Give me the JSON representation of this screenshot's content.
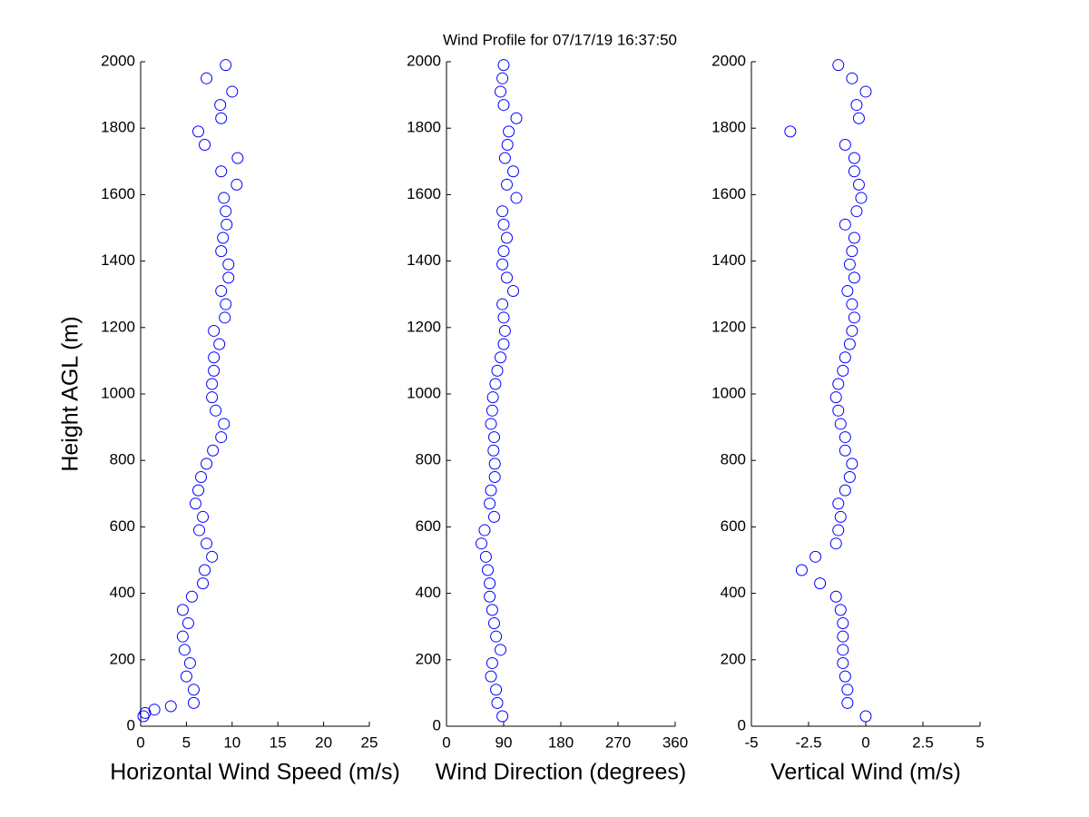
{
  "title": "Wind Profile for  07/17/19 16:37:50",
  "chart_data": [
    {
      "type": "scatter",
      "x_label": "Horizontal Wind Speed (m/s)",
      "y_label": "Height AGL (m)",
      "xlim": [
        0,
        25
      ],
      "xticks": [
        0,
        5,
        10,
        15,
        20,
        25
      ],
      "ylim": [
        0,
        2000
      ],
      "yticks": [
        0,
        200,
        400,
        600,
        800,
        1000,
        1200,
        1400,
        1600,
        1800,
        2000
      ],
      "series": [
        {
          "color": "#0000ff",
          "x": [
            0.3,
            0.5,
            1.5,
            3.3,
            5.8,
            5.8,
            5.0,
            5.4,
            4.8,
            4.6,
            5.2,
            4.6,
            5.6,
            6.8,
            7.0,
            7.8,
            7.2,
            6.4,
            6.8,
            6.0,
            6.3,
            6.6,
            7.2,
            7.9,
            8.8,
            9.1,
            8.2,
            7.8,
            7.8,
            8.0,
            8.0,
            8.6,
            8.0,
            9.2,
            9.3,
            8.8,
            9.6,
            9.6,
            8.8,
            9.0,
            9.4,
            9.3,
            9.1,
            10.5,
            8.8,
            10.6,
            7.0,
            6.3,
            8.8,
            8.7,
            10.0,
            7.2,
            9.3
          ],
          "y": [
            30,
            40,
            50,
            60,
            70,
            110,
            150,
            190,
            230,
            270,
            310,
            350,
            390,
            430,
            470,
            510,
            550,
            590,
            630,
            670,
            710,
            750,
            790,
            830,
            870,
            910,
            950,
            990,
            1030,
            1070,
            1110,
            1150,
            1190,
            1230,
            1270,
            1310,
            1350,
            1390,
            1430,
            1470,
            1510,
            1550,
            1590,
            1630,
            1670,
            1710,
            1750,
            1790,
            1830,
            1870,
            1910,
            1950,
            1990
          ]
        }
      ]
    },
    {
      "type": "scatter",
      "x_label": "Wind Direction (degrees)",
      "xlim": [
        0,
        360
      ],
      "xticks": [
        0,
        90,
        180,
        270,
        360
      ],
      "ylim": [
        0,
        2000
      ],
      "yticks": [
        0,
        200,
        400,
        600,
        800,
        1000,
        1200,
        1400,
        1600,
        1800,
        2000
      ],
      "series": [
        {
          "color": "#0000ff",
          "x": [
            88,
            80,
            78,
            70,
            72,
            85,
            78,
            75,
            72,
            68,
            68,
            65,
            62,
            55,
            60,
            75,
            68,
            70,
            76,
            76,
            74,
            75,
            70,
            72,
            73,
            77,
            80,
            85,
            90,
            92,
            90,
            88,
            105,
            95,
            88,
            90,
            95,
            90,
            88,
            110,
            95,
            105,
            92,
            96,
            98,
            110,
            90,
            85,
            88,
            90
          ],
          "y": [
            30,
            70,
            110,
            150,
            190,
            230,
            270,
            310,
            350,
            390,
            430,
            470,
            510,
            550,
            590,
            630,
            670,
            710,
            750,
            790,
            830,
            870,
            910,
            950,
            990,
            1030,
            1070,
            1110,
            1150,
            1190,
            1230,
            1270,
            1310,
            1350,
            1390,
            1430,
            1470,
            1510,
            1550,
            1590,
            1630,
            1670,
            1710,
            1750,
            1790,
            1830,
            1870,
            1910,
            1950,
            1990
          ]
        }
      ]
    },
    {
      "type": "scatter",
      "x_label": "Vertical Wind (m/s)",
      "xlim": [
        -5,
        5
      ],
      "xticks": [
        -5,
        -2.5,
        0,
        2.5,
        5
      ],
      "ylim": [
        0,
        2000
      ],
      "yticks": [
        0,
        200,
        400,
        600,
        800,
        1000,
        1200,
        1400,
        1600,
        1800,
        2000
      ],
      "series": [
        {
          "color": "#0000ff",
          "x": [
            0,
            -0.8,
            -0.8,
            -0.9,
            -1,
            -1,
            -1,
            -1,
            -1.1,
            -1.3,
            -2,
            -2.8,
            -2.2,
            -1.3,
            -1.2,
            -1.1,
            -1.2,
            -0.9,
            -0.7,
            -0.6,
            -0.9,
            -0.9,
            -1.1,
            -1.2,
            -1.3,
            -1.2,
            -1,
            -0.9,
            -0.7,
            -0.6,
            -0.5,
            -0.6,
            -0.8,
            -0.5,
            -0.7,
            -0.6,
            -0.5,
            -0.9,
            -0.4,
            -0.2,
            -0.3,
            -0.5,
            -0.5,
            -0.9,
            -3.3,
            -0.3,
            -0.4,
            0,
            -0.6,
            -1.2
          ],
          "y": [
            30,
            70,
            110,
            150,
            190,
            230,
            270,
            310,
            350,
            390,
            430,
            470,
            510,
            550,
            590,
            630,
            670,
            710,
            750,
            790,
            830,
            870,
            910,
            950,
            990,
            1030,
            1070,
            1110,
            1150,
            1190,
            1230,
            1270,
            1310,
            1350,
            1390,
            1430,
            1470,
            1510,
            1550,
            1590,
            1630,
            1670,
            1710,
            1750,
            1790,
            1830,
            1870,
            1910,
            1950,
            1990
          ]
        }
      ]
    }
  ]
}
